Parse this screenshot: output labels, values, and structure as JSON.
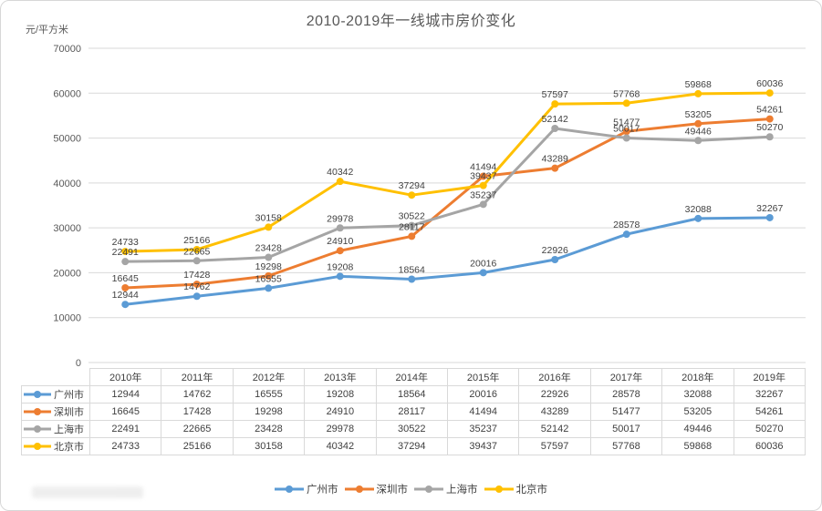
{
  "title": "2010-2019年一线城市房价变化",
  "y_axis_unit": "元/平方米",
  "chart_data": {
    "type": "line",
    "title": "2010-2019年一线城市房价变化",
    "categories": [
      "2010年",
      "2011年",
      "2012年",
      "2013年",
      "2014年",
      "2015年",
      "2016年",
      "2017年",
      "2018年",
      "2019年"
    ],
    "series": [
      {
        "name": "广州市",
        "color": "#5B9BD5",
        "values": [
          12944,
          14762,
          16555,
          19208,
          18564,
          20016,
          22926,
          28578,
          32088,
          32267
        ]
      },
      {
        "name": "深圳市",
        "color": "#ED7D31",
        "values": [
          16645,
          17428,
          19298,
          24910,
          28117,
          41494,
          43289,
          51477,
          53205,
          54261
        ]
      },
      {
        "name": "上海市",
        "color": "#A5A5A5",
        "values": [
          22491,
          22665,
          23428,
          29978,
          30522,
          35237,
          52142,
          50017,
          49446,
          50270
        ]
      },
      {
        "name": "北京市",
        "color": "#FFC000",
        "values": [
          24733,
          25166,
          30158,
          40342,
          37294,
          39437,
          57597,
          57768,
          59868,
          60036
        ]
      }
    ],
    "xlabel": "",
    "ylabel": "元/平方米",
    "ylim": [
      0,
      70000
    ],
    "y_ticks": [
      0,
      10000,
      20000,
      30000,
      40000,
      50000,
      60000,
      70000
    ],
    "grid": true,
    "data_labels": true,
    "legend_position": "bottom",
    "show_data_table": true,
    "gridline_color": "#D9D9D9",
    "label_color": "#404040",
    "axis_text_color": "#595959"
  }
}
